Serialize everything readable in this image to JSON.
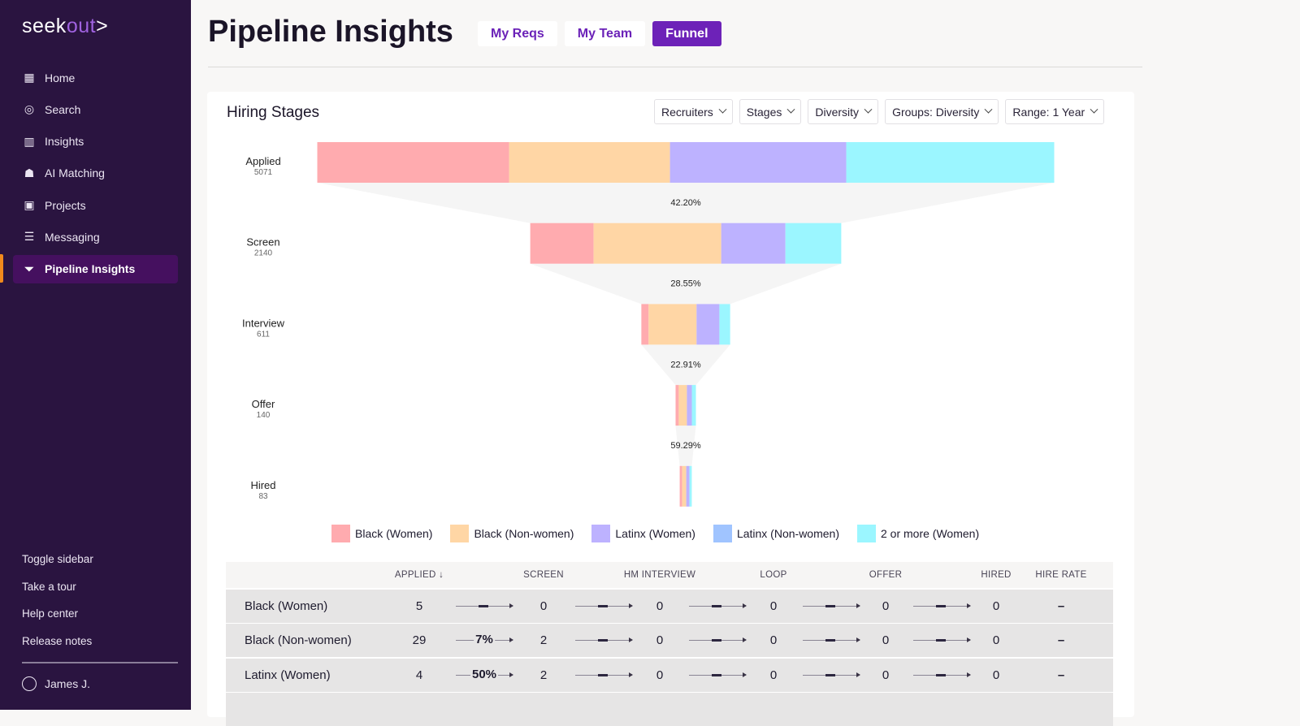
{
  "sidebar": {
    "logo_a": "seek",
    "logo_b": "out",
    "logo_c": ">",
    "items": [
      {
        "label": "Home",
        "icon": "home-grid-icon"
      },
      {
        "label": "Search",
        "icon": "search-icon"
      },
      {
        "label": "Insights",
        "icon": "insights-chart-icon"
      },
      {
        "label": "AI Matching",
        "icon": "robot-icon"
      },
      {
        "label": "Projects",
        "icon": "projects-folder-icon"
      },
      {
        "label": "Messaging",
        "icon": "message-icon"
      },
      {
        "label": "Pipeline Insights",
        "icon": "funnel-icon"
      }
    ],
    "bottom": [
      "Toggle sidebar",
      "Take a tour",
      "Help center",
      "Release notes"
    ],
    "user": "James J."
  },
  "header": {
    "title": "Pipeline Insights",
    "tabs": [
      "My Reqs",
      "My Team",
      "Funnel"
    ]
  },
  "card": {
    "title": "Hiring Stages",
    "filters": [
      "Recruiters",
      "Stages",
      "Diversity",
      "Groups: Diversity",
      "Range: 1 Year"
    ]
  },
  "colors": {
    "Black (Women)": "#ffabaf",
    "Black (Non-women)": "#ffd6a5",
    "Latinx (Women)": "#bdb2ff",
    "Latinx (Non-women)": "#a0c4ff",
    "2 or more (Women)": "#9bf6ff"
  },
  "chart_data": {
    "type": "funnel",
    "stages": [
      {
        "name": "Applied",
        "total": 5071
      },
      {
        "name": "Screen",
        "total": 2140
      },
      {
        "name": "Interview",
        "total": 611
      },
      {
        "name": "Offer",
        "total": 140
      },
      {
        "name": "Hired",
        "total": 83
      }
    ],
    "conversions": [
      "42.20%",
      "28.55%",
      "22.91%",
      "59.29%"
    ],
    "series": [
      {
        "name": "Black (Women)",
        "values": [
          1320,
          436,
          50,
          22,
          17
        ]
      },
      {
        "name": "Black (Non-women)",
        "values": [
          1107,
          878,
          330,
          56,
          28
        ]
      },
      {
        "name": "Latinx (Women)",
        "values": [
          1213,
          442,
          157,
          34,
          22
        ]
      },
      {
        "name": "Latinx (Non-women)",
        "values": [
          0,
          0,
          0,
          0,
          0
        ]
      },
      {
        "name": "2 or more (Women)",
        "values": [
          1431,
          384,
          74,
          28,
          16
        ]
      }
    ],
    "legend": [
      "Black (Women)",
      "Black (Non-women)",
      "Latinx (Women)",
      "Latinx (Non-women)",
      "2 or more (Women)"
    ]
  },
  "table": {
    "headers": [
      "APPLIED",
      "SCREEN",
      "HM INTERVIEW",
      "LOOP",
      "OFFER",
      "HIRED",
      "HIRE RATE"
    ],
    "sort_icon": "↓",
    "rows": [
      {
        "group": "Black (Women)",
        "values": [
          "5",
          "0",
          "0",
          "0",
          "0",
          "0"
        ],
        "conv": [
          "",
          "",
          "",
          "",
          ""
        ],
        "hire_rate": "–"
      },
      {
        "group": "Black (Non-women)",
        "values": [
          "29",
          "2",
          "0",
          "0",
          "0",
          "0"
        ],
        "conv": [
          "7%",
          "",
          "",
          "",
          ""
        ],
        "hire_rate": "–"
      },
      {
        "group": "Latinx (Women)",
        "values": [
          "4",
          "2",
          "0",
          "0",
          "0",
          "0"
        ],
        "conv": [
          "50%",
          "",
          "",
          "",
          ""
        ],
        "hire_rate": "–"
      }
    ]
  }
}
